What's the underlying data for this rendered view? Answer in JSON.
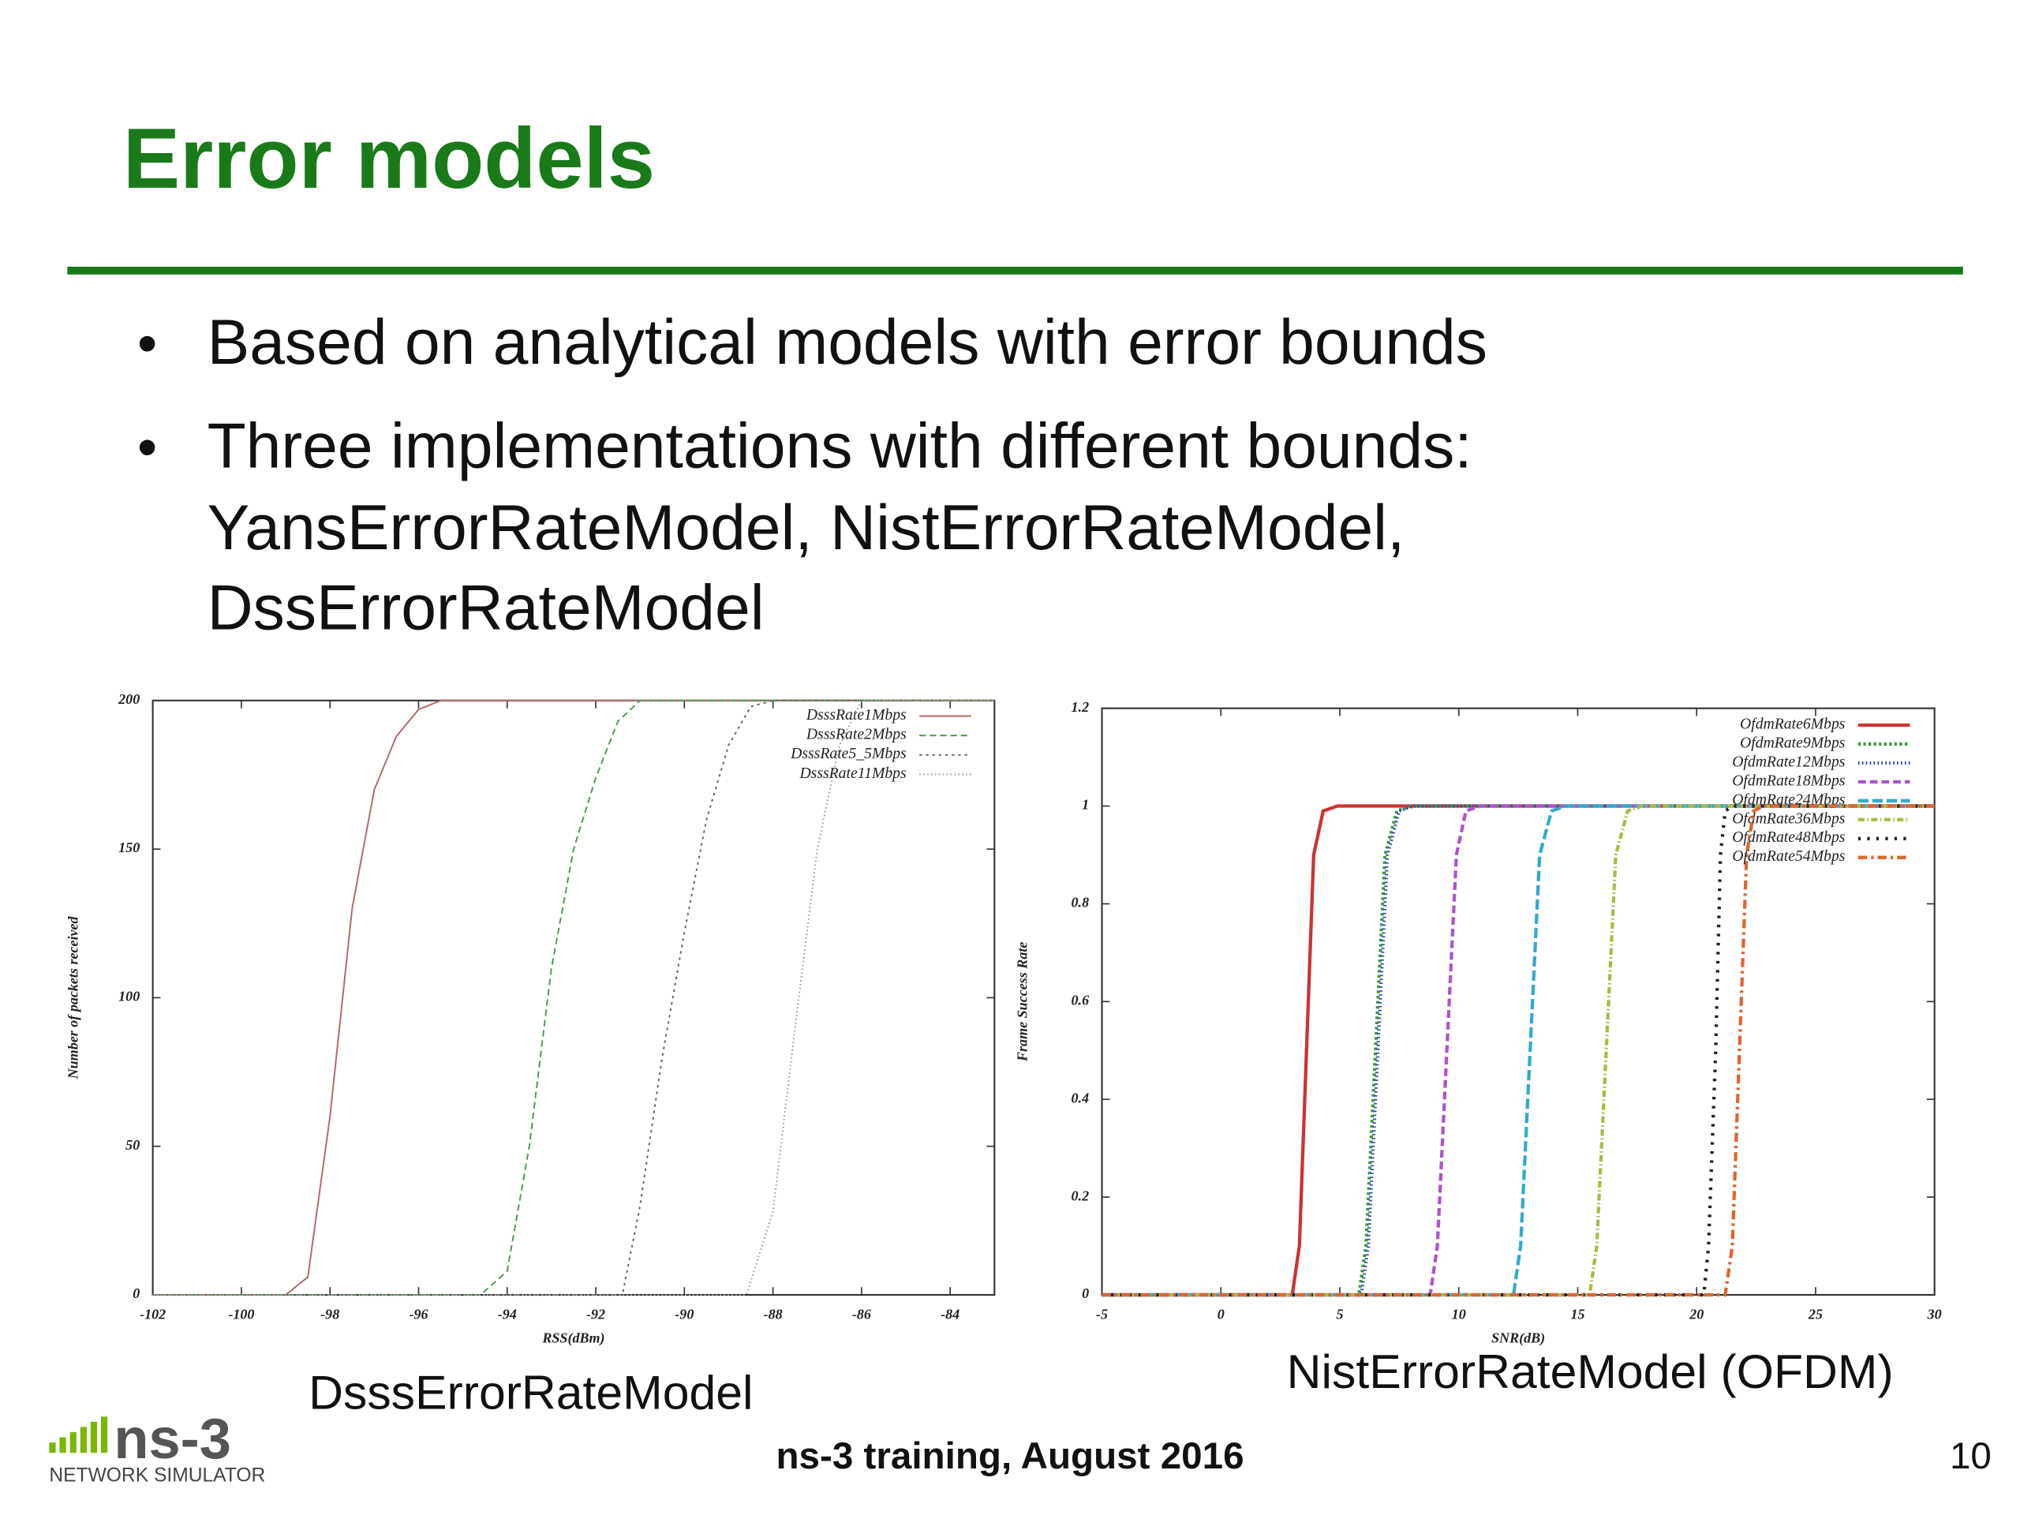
{
  "slide": {
    "title": "Error models",
    "bullets": [
      [
        "Based on analytical models with error bounds"
      ],
      [
        "Three implementations with different bounds:",
        "YansErrorRateModel, NistErrorRateModel,",
        "DssErrorRateModel"
      ]
    ],
    "footer": "ns-3 training, August 2016",
    "page": "10",
    "logo": {
      "name": "ns-3",
      "subtitle": "NETWORK SIMULATOR"
    }
  },
  "chart_data": [
    {
      "type": "line",
      "caption": "DsssErrorRateModel",
      "xlabel": "RSS(dBm)",
      "ylabel": "Number of packets received",
      "xlim": [
        -102,
        -83
      ],
      "xticks": [
        -102,
        -100,
        -98,
        -96,
        -94,
        -92,
        -90,
        -88,
        -86,
        -84
      ],
      "ylim": [
        0,
        200
      ],
      "yticks": [
        0,
        50,
        100,
        150,
        200
      ],
      "grid": false,
      "legend": "top-right",
      "line_width": 1.2,
      "series": [
        {
          "name": "DsssRate1Mbps",
          "color": "#b06a6a",
          "dash": "none",
          "x": [
            -102,
            -99,
            -98.5,
            -98,
            -97.5,
            -97,
            -96.5,
            -96,
            -95.5,
            -83
          ],
          "values": [
            0,
            0,
            6,
            60,
            130,
            170,
            188,
            197,
            200,
            200
          ]
        },
        {
          "name": "DsssRate2Mbps",
          "color": "#4f9a4f",
          "dash": "5,3",
          "x": [
            -102,
            -94.6,
            -94,
            -93.5,
            -93,
            -92.5,
            -92,
            -91.5,
            -91,
            -83
          ],
          "values": [
            0,
            0,
            8,
            50,
            110,
            150,
            174,
            193,
            200,
            200
          ]
        },
        {
          "name": "DsssRate5_5Mbps",
          "color": "#666666",
          "dash": "2,3",
          "x": [
            -102,
            -91.4,
            -91,
            -90.5,
            -90,
            -89.5,
            -89,
            -88.5,
            -88,
            -83
          ],
          "values": [
            0,
            0,
            30,
            80,
            122,
            160,
            185,
            198,
            200,
            200
          ]
        },
        {
          "name": "DsssRate11Mbps",
          "color": "#9a9a9a",
          "dash": "1,2",
          "x": [
            -102,
            -88.6,
            -88,
            -87.5,
            -87,
            -86.5,
            -86,
            -83
          ],
          "values": [
            0,
            0,
            28,
            90,
            150,
            185,
            200,
            200
          ]
        }
      ]
    },
    {
      "type": "line",
      "caption": "NistErrorRateModel (OFDM)",
      "xlabel": "SNR(dB)",
      "ylabel": "Frame Success Rate",
      "xlim": [
        -5,
        30
      ],
      "xticks": [
        -5,
        0,
        5,
        10,
        15,
        20,
        25,
        30
      ],
      "ylim": [
        0,
        1.2
      ],
      "yticks": [
        0,
        0.2,
        0.4,
        0.6,
        0.8,
        1,
        1.2
      ],
      "grid": false,
      "legend": "top-right",
      "line_width": 2.6,
      "series": [
        {
          "name": "OfdmRate6Mbps",
          "color": "#cc3333",
          "dash": "none",
          "x": [
            -5,
            3.0,
            3.3,
            3.6,
            3.9,
            4.3,
            4.9,
            30
          ],
          "values": [
            0,
            0,
            0.1,
            0.5,
            0.9,
            0.99,
            1,
            1
          ]
        },
        {
          "name": "OfdmRate9Mbps",
          "color": "#3a9a3a",
          "dash": "2,2",
          "x": [
            -5,
            5.8,
            6.1,
            6.5,
            6.9,
            7.4,
            8.0,
            30
          ],
          "values": [
            0,
            0,
            0.1,
            0.5,
            0.9,
            0.99,
            1,
            1
          ]
        },
        {
          "name": "OfdmRate12Mbps",
          "color": "#3344bb",
          "dash": "1,2",
          "x": [
            -5,
            5.9,
            6.2,
            6.6,
            7.0,
            7.5,
            8.1,
            30
          ],
          "values": [
            0,
            0,
            0.1,
            0.5,
            0.9,
            0.99,
            1,
            1
          ]
        },
        {
          "name": "OfdmRate18Mbps",
          "color": "#aa55cc",
          "dash": "6,3",
          "x": [
            -5,
            8.8,
            9.1,
            9.5,
            9.9,
            10.3,
            10.9,
            30
          ],
          "values": [
            0,
            0,
            0.1,
            0.5,
            0.9,
            0.99,
            1,
            1
          ]
        },
        {
          "name": "OfdmRate24Mbps",
          "color": "#33aacc",
          "dash": "8,3",
          "x": [
            -5,
            12.3,
            12.6,
            13.0,
            13.4,
            13.9,
            14.5,
            30
          ],
          "values": [
            0,
            0,
            0.1,
            0.5,
            0.9,
            0.99,
            1,
            1
          ]
        },
        {
          "name": "OfdmRate36Mbps",
          "color": "#aabb44",
          "dash": "5,2,1,2",
          "x": [
            -5,
            15.5,
            15.8,
            16.2,
            16.6,
            17.1,
            17.7,
            30
          ],
          "values": [
            0,
            0,
            0.1,
            0.5,
            0.9,
            0.99,
            1,
            1
          ]
        },
        {
          "name": "OfdmRate48Mbps",
          "color": "#222222",
          "dash": "2,5",
          "x": [
            -5,
            20.3,
            20.5,
            20.8,
            21.0,
            21.2,
            21.5,
            30
          ],
          "values": [
            0,
            0,
            0.1,
            0.5,
            0.9,
            0.99,
            1,
            1
          ]
        },
        {
          "name": "OfdmRate54Mbps",
          "color": "#dd6633",
          "dash": "7,3,2,3",
          "x": [
            -5,
            21.2,
            21.5,
            21.8,
            22.1,
            22.4,
            22.8,
            30
          ],
          "values": [
            0,
            0,
            0.1,
            0.5,
            0.9,
            0.99,
            1,
            1
          ]
        }
      ]
    }
  ]
}
